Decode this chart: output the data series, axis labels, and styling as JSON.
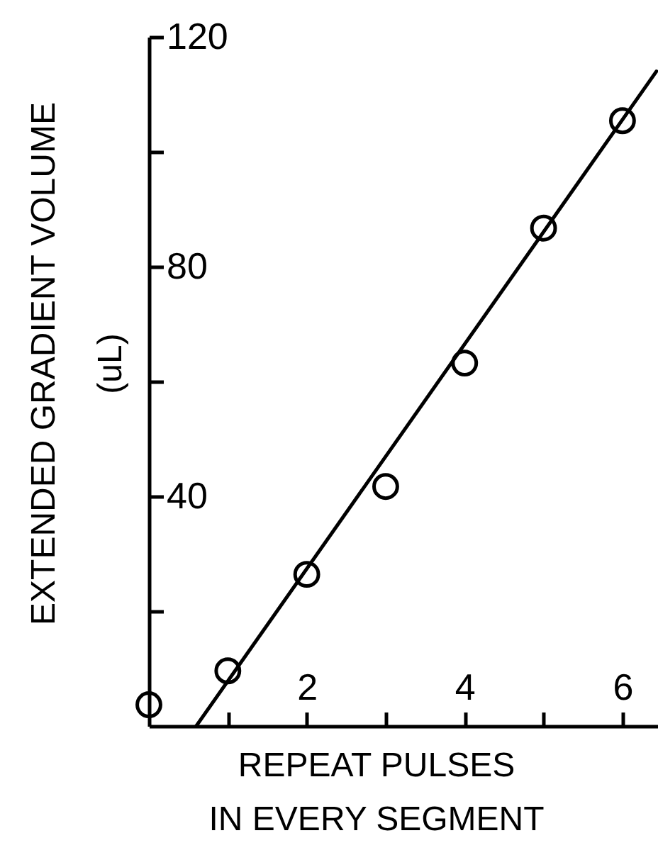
{
  "chart_data": {
    "type": "scatter",
    "xlabel": "REPEAT PULSES\nIN EVERY SEGMENT",
    "ylabel": "EXTENDED GRADIENT VOLUME\n(uL)",
    "x": [
      0,
      1,
      2,
      3,
      4,
      5,
      6
    ],
    "series": [
      {
        "color": "#000000",
        "marker": "circle",
        "values": [
          3.7,
          9.6,
          26.4,
          41.7,
          63.2,
          86.7,
          105.4
        ]
      },
      {
        "type": "line",
        "color": "#000000",
        "x": [
          0.6,
          6.43
        ],
        "values": [
          0,
          114
        ]
      }
    ],
    "xlim": [
      0,
      6.45
    ],
    "ylim": [
      0,
      120
    ],
    "xticks": [
      {
        "value": 1,
        "label": null
      },
      2,
      {
        "value": 3,
        "label": null
      },
      4,
      {
        "value": 5,
        "label": null
      },
      6
    ],
    "yticks": [
      {
        "value": 20,
        "label": null
      },
      40,
      {
        "value": 60,
        "label": null
      },
      80,
      {
        "value": 100,
        "label": null
      },
      120
    ]
  }
}
